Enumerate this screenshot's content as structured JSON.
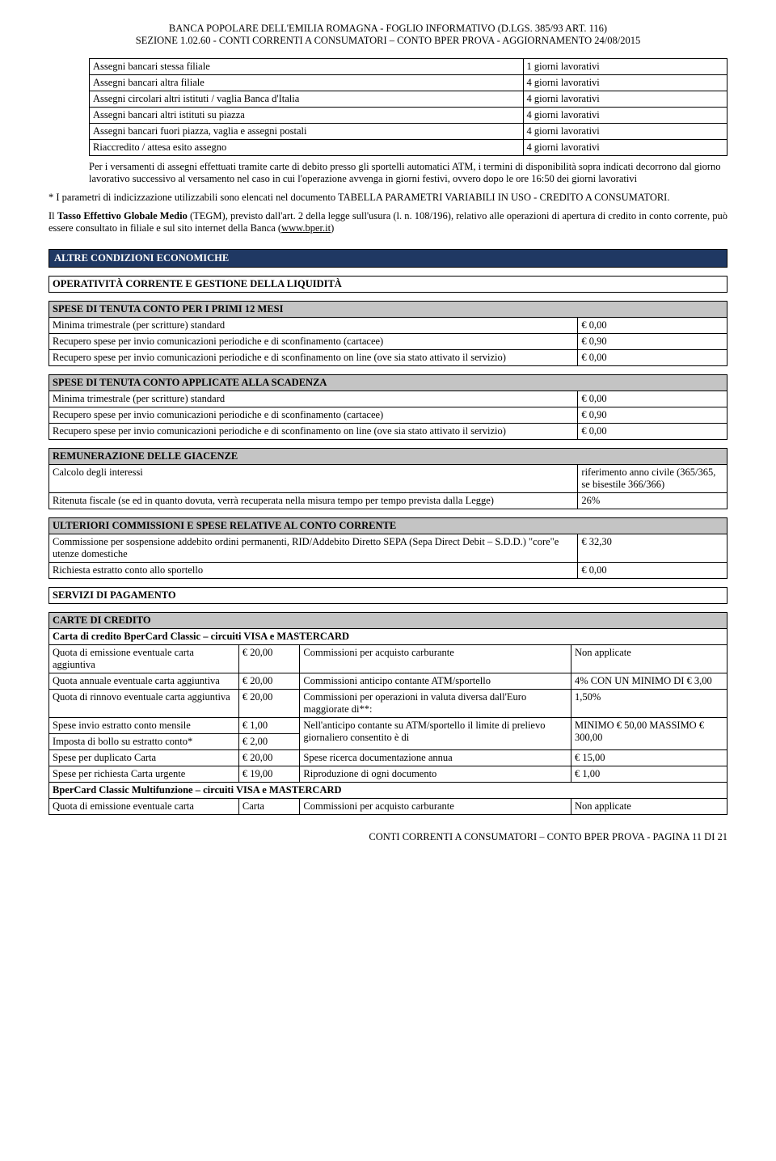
{
  "header": {
    "line1": "BANCA POPOLARE DELL'EMILIA ROMAGNA - FOGLIO INFORMATIVO (D.LGS. 385/93 ART. 116)",
    "line2": "SEZIONE 1.02.60 - CONTI CORRENTI A CONSUMATORI – CONTO BPER PROVA - AGGIORNAMENTO 24/08/2015"
  },
  "assegni_table": [
    {
      "l": "Assegni bancari stessa filiale",
      "r": "1 giorni lavorativi"
    },
    {
      "l": "Assegni bancari altra filiale",
      "r": "4 giorni lavorativi"
    },
    {
      "l": "Assegni circolari altri istituti / vaglia Banca d'Italia",
      "r": "4 giorni lavorativi"
    },
    {
      "l": "Assegni bancari altri istituti su piazza",
      "r": "4 giorni lavorativi"
    },
    {
      "l": "Assegni bancari fuori piazza, vaglia e assegni postali",
      "r": "4 giorni lavorativi"
    },
    {
      "l": "Riaccredito / attesa esito assegno",
      "r": "4 giorni lavorativi"
    }
  ],
  "indent_para": "Per i versamenti di assegni effettuati tramite carte di debito presso gli sportelli automatici ATM, i termini di disponibilità sopra indicati decorrono dal giorno lavorativo successivo al versamento nel caso in cui l'operazione avvenga in giorni festivi, ovvero dopo le ore 16:50 dei giorni lavorativi",
  "para_star": "*  I parametri di  indicizzazione utilizzabili sono elencati nel documento TABELLA PARAMETRI VARIABILI IN USO - CREDITO A CONSUMATORI.",
  "para_tegm_pre": "Il ",
  "para_tegm_bold": "Tasso Effettivo Globale Medio",
  "para_tegm_mid": " (TEGM), previsto dall'art. 2 della legge sull'usura (l. n. 108/196), relativo alle operazioni di apertura di credito in conto corrente, può essere consultato in filiale e sul sito internet della Banca (",
  "para_tegm_link": "www.bper.it",
  "para_tegm_post": ")",
  "banner_altre": "ALTRE CONDIZIONI ECONOMICHE",
  "sub_operativita": "OPERATIVITÀ CORRENTE E GESTIONE DELLA LIQUIDITÀ",
  "spese12_hdr": "SPESE DI TENUTA CONTO PER I PRIMI 12 MESI",
  "spese12": [
    {
      "l": "Minima trimestrale (per scritture) standard",
      "r": "€ 0,00"
    },
    {
      "l": "Recupero spese per invio comunicazioni periodiche e di sconfinamento (cartacee)",
      "r": "€ 0,90"
    },
    {
      "l": "Recupero spese per invio comunicazioni periodiche e di sconfinamento on line (ove sia stato attivato il servizio)",
      "r": "€ 0,00"
    }
  ],
  "spese_scad_hdr": "SPESE DI TENUTA CONTO APPLICATE ALLA SCADENZA",
  "spese_scad": [
    {
      "l": "Minima trimestrale (per scritture) standard",
      "r": "€ 0,00"
    },
    {
      "l": "Recupero spese per invio comunicazioni periodiche e di sconfinamento (cartacee)",
      "r": "€ 0,90"
    },
    {
      "l": "Recupero spese per invio comunicazioni periodiche e di sconfinamento on line (ove sia stato attivato il servizio)",
      "r": "€ 0,00"
    }
  ],
  "remun_hdr": "REMUNERAZIONE DELLE GIACENZE",
  "remun": [
    {
      "l": "Calcolo degli interessi",
      "r": "riferimento anno civile (365/365, se bisestile 366/366)"
    },
    {
      "l": "Ritenuta fiscale (se ed in quanto dovuta, verrà recuperata nella misura tempo per  tempo prevista dalla Legge)",
      "r": "26%"
    }
  ],
  "ult_hdr": "ULTERIORI COMMISSIONI E SPESE RELATIVE AL CONTO CORRENTE",
  "ult": [
    {
      "l": "Commissione per sospensione addebito ordini permanenti, RID/Addebito Diretto SEPA (Sepa Direct Debit – S.D.D.) \"core\"e utenze domestiche",
      "r": "€ 32,30"
    },
    {
      "l": "Richiesta estratto conto allo sportello",
      "r": "€ 0,00"
    }
  ],
  "servizi_hdr": "SERVIZI DI PAGAMENTO",
  "cc_hdr": "CARTE DI CREDITO",
  "cc_sub1": "Carta di credito BperCard Classic – circuiti VISA e MASTERCARD",
  "cc_rows1": [
    {
      "c1": "Quota di emissione eventuale carta aggiuntiva",
      "c2": "€ 20,00",
      "c3": "Commissioni per acquisto carburante",
      "c4": "Non applicate"
    },
    {
      "c1": "Quota annuale eventuale carta aggiuntiva",
      "c2": "€ 20,00",
      "c3": "Commissioni anticipo contante ATM/sportello",
      "c4": "4% CON UN MINIMO DI € 3,00"
    },
    {
      "c1": "Quota di rinnovo eventuale carta aggiuntiva",
      "c2": "€ 20,00",
      "c3": "Commissioni per operazioni in valuta diversa dall'Euro maggiorate di**:",
      "c4": "1,50%"
    },
    {
      "c1": "Spese invio estratto conto mensile",
      "c2": "€ 1,00",
      "c3": "Nell'anticipo contante su ATM/sportello il limite di prelievo giornaliero consentito è di",
      "c3_rowspan": 2,
      "c4": "MINIMO € 50,00 MASSIMO € 300,00",
      "c4_rowspan": 2
    },
    {
      "c1": "Imposta di bollo su estratto conto*",
      "c2": "€ 2,00"
    },
    {
      "c1": "Spese per duplicato Carta",
      "c2": "€ 20,00",
      "c3": "Spese ricerca documentazione annua",
      "c4": "€ 15,00"
    },
    {
      "c1": "Spese per richiesta Carta urgente",
      "c2": "€ 19,00",
      "c3": "Riproduzione di ogni documento",
      "c4": "€ 1,00"
    }
  ],
  "cc_sub2": "BperCard Classic Multifunzione – circuiti VISA e MASTERCARD",
  "cc_rows2": [
    {
      "c1": "Quota di emissione eventuale carta",
      "c2": "Carta",
      "c3": "Commissioni per acquisto carburante",
      "c4": "Non applicate"
    }
  ],
  "footer": "CONTI CORRENTI A CONSUMATORI – CONTO BPER PROVA - PAGINA 11 DI 21"
}
